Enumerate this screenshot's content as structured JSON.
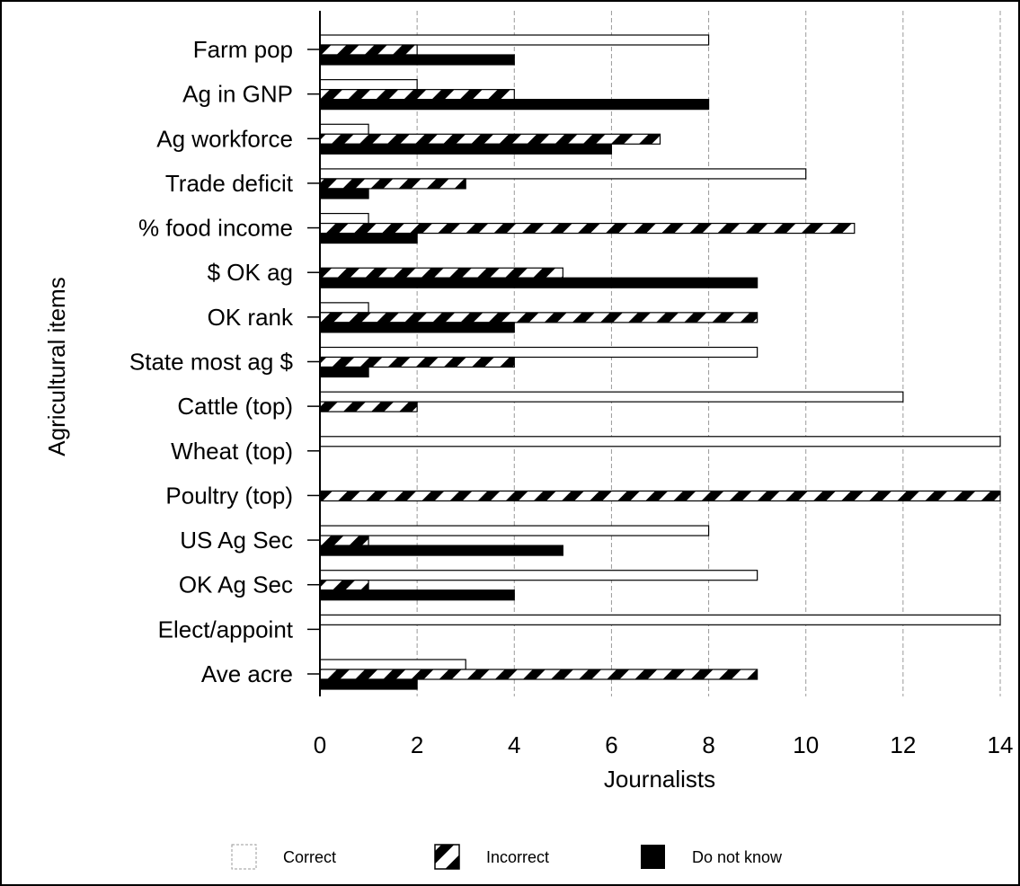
{
  "chart_data": {
    "type": "bar",
    "orientation": "horizontal",
    "title": "",
    "xlabel": "Journalists",
    "ylabel": "Agricultural items",
    "xlim": [
      0,
      14
    ],
    "xticks": [
      0,
      2,
      4,
      6,
      8,
      10,
      12,
      14
    ],
    "grid": true,
    "legend_position": "bottom",
    "categories": [
      "Farm pop",
      "Ag in GNP",
      "Ag workforce",
      "Trade deficit",
      "% food income",
      "$ OK ag",
      "OK rank",
      "State most ag $",
      "Cattle (top)",
      "Wheat (top)",
      "Poultry (top)",
      "US Ag Sec",
      "OK Ag Sec",
      "Elect/appoint",
      "Ave acre"
    ],
    "series": [
      {
        "name": "Correct",
        "pattern": "white",
        "values": [
          8,
          2,
          1,
          10,
          1,
          0,
          1,
          9,
          12,
          14,
          0,
          8,
          9,
          14,
          3
        ]
      },
      {
        "name": "Incorrect",
        "pattern": "hatched",
        "values": [
          2,
          4,
          7,
          3,
          11,
          5,
          9,
          4,
          2,
          0,
          14,
          1,
          1,
          0,
          9
        ]
      },
      {
        "name": "Do not know",
        "pattern": "black",
        "values": [
          4,
          8,
          6,
          1,
          2,
          9,
          4,
          1,
          0,
          0,
          0,
          5,
          4,
          0,
          2
        ]
      }
    ]
  }
}
